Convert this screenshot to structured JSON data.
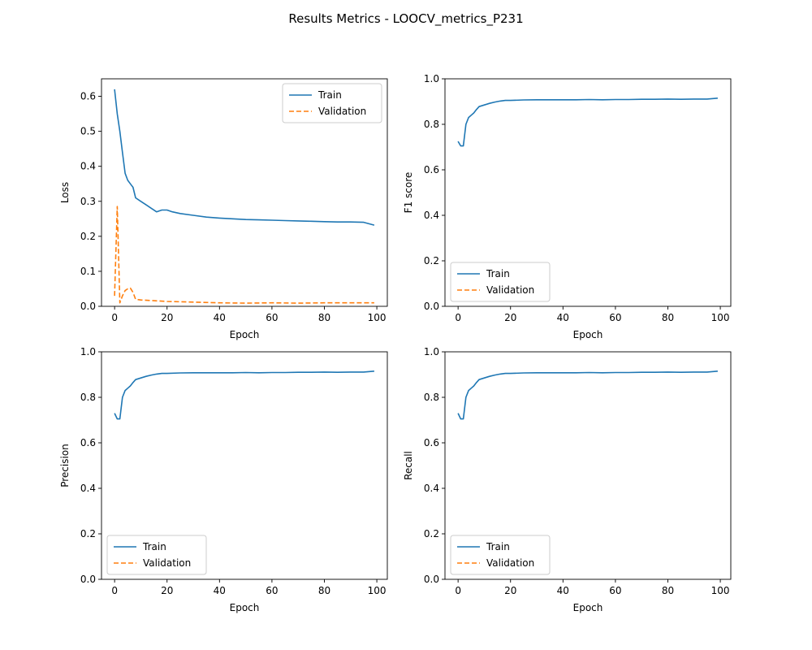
{
  "figure": {
    "title": "Results Metrics - LOOCV_metrics_P231"
  },
  "colors": {
    "train": "#1f77b4",
    "validation": "#ff7f0e"
  },
  "chart_data": [
    {
      "type": "line",
      "xlabel": "Epoch",
      "ylabel": "Loss",
      "xlim": [
        -5,
        104
      ],
      "ylim": [
        0,
        0.65
      ],
      "xticks": [
        0,
        20,
        40,
        60,
        80,
        100
      ],
      "yticks": [
        0.0,
        0.1,
        0.2,
        0.3,
        0.4,
        0.5,
        0.6
      ],
      "legend_position": "upper-right",
      "series": [
        {
          "name": "Train",
          "style": "solid",
          "x": [
            0,
            1,
            2,
            3,
            4,
            5,
            6,
            7,
            8,
            10,
            12,
            14,
            16,
            18,
            20,
            22,
            25,
            30,
            35,
            40,
            45,
            50,
            55,
            60,
            65,
            70,
            75,
            80,
            85,
            90,
            95,
            99
          ],
          "y": [
            0.62,
            0.55,
            0.5,
            0.44,
            0.38,
            0.36,
            0.35,
            0.34,
            0.31,
            0.3,
            0.29,
            0.28,
            0.27,
            0.275,
            0.275,
            0.27,
            0.265,
            0.26,
            0.255,
            0.252,
            0.25,
            0.248,
            0.247,
            0.246,
            0.245,
            0.244,
            0.243,
            0.242,
            0.241,
            0.241,
            0.24,
            0.232
          ]
        },
        {
          "name": "Validation",
          "style": "dashed",
          "x": [
            0,
            1,
            2,
            3,
            4,
            5,
            6,
            7,
            8,
            10,
            15,
            20,
            30,
            40,
            50,
            60,
            70,
            80,
            90,
            99
          ],
          "y": [
            0.03,
            0.285,
            0.01,
            0.03,
            0.045,
            0.05,
            0.052,
            0.04,
            0.02,
            0.018,
            0.016,
            0.014,
            0.012,
            0.01,
            0.009,
            0.01,
            0.009,
            0.01,
            0.01,
            0.01
          ]
        }
      ]
    },
    {
      "type": "line",
      "xlabel": "Epoch",
      "ylabel": "F1 score",
      "xlim": [
        -5,
        104
      ],
      "ylim": [
        0,
        1
      ],
      "xticks": [
        0,
        20,
        40,
        60,
        80,
        100
      ],
      "yticks": [
        0.0,
        0.2,
        0.4,
        0.6,
        0.8,
        1.0
      ],
      "legend_position": "lower-left",
      "series": [
        {
          "name": "Train",
          "style": "solid",
          "x": [
            0,
            1,
            2,
            3,
            4,
            5,
            6,
            7,
            8,
            10,
            12,
            14,
            16,
            18,
            20,
            25,
            30,
            35,
            40,
            45,
            50,
            55,
            60,
            65,
            70,
            75,
            80,
            85,
            90,
            95,
            99
          ],
          "y": [
            0.725,
            0.705,
            0.705,
            0.8,
            0.83,
            0.84,
            0.85,
            0.865,
            0.878,
            0.885,
            0.892,
            0.898,
            0.902,
            0.905,
            0.905,
            0.907,
            0.908,
            0.908,
            0.908,
            0.908,
            0.909,
            0.908,
            0.909,
            0.909,
            0.91,
            0.91,
            0.911,
            0.91,
            0.911,
            0.911,
            0.915
          ]
        },
        {
          "name": "Validation",
          "style": "dashed",
          "x": [],
          "y": []
        }
      ]
    },
    {
      "type": "line",
      "xlabel": "Epoch",
      "ylabel": "Precision",
      "xlim": [
        -5,
        104
      ],
      "ylim": [
        0,
        1
      ],
      "xticks": [
        0,
        20,
        40,
        60,
        80,
        100
      ],
      "yticks": [
        0.0,
        0.2,
        0.4,
        0.6,
        0.8,
        1.0
      ],
      "legend_position": "lower-left",
      "series": [
        {
          "name": "Train",
          "style": "solid",
          "x": [
            0,
            1,
            2,
            3,
            4,
            5,
            6,
            7,
            8,
            10,
            12,
            14,
            16,
            18,
            20,
            25,
            30,
            35,
            40,
            45,
            50,
            55,
            60,
            65,
            70,
            75,
            80,
            85,
            90,
            95,
            99
          ],
          "y": [
            0.73,
            0.705,
            0.705,
            0.8,
            0.83,
            0.84,
            0.85,
            0.865,
            0.878,
            0.885,
            0.892,
            0.898,
            0.902,
            0.905,
            0.905,
            0.907,
            0.908,
            0.908,
            0.908,
            0.908,
            0.909,
            0.908,
            0.909,
            0.909,
            0.91,
            0.91,
            0.911,
            0.91,
            0.911,
            0.911,
            0.915
          ]
        },
        {
          "name": "Validation",
          "style": "dashed",
          "x": [],
          "y": []
        }
      ]
    },
    {
      "type": "line",
      "xlabel": "Epoch",
      "ylabel": "Recall",
      "xlim": [
        -5,
        104
      ],
      "ylim": [
        0,
        1
      ],
      "xticks": [
        0,
        20,
        40,
        60,
        80,
        100
      ],
      "yticks": [
        0.0,
        0.2,
        0.4,
        0.6,
        0.8,
        1.0
      ],
      "legend_position": "lower-left",
      "series": [
        {
          "name": "Train",
          "style": "solid",
          "x": [
            0,
            1,
            2,
            3,
            4,
            5,
            6,
            7,
            8,
            10,
            12,
            14,
            16,
            18,
            20,
            25,
            30,
            35,
            40,
            45,
            50,
            55,
            60,
            65,
            70,
            75,
            80,
            85,
            90,
            95,
            99
          ],
          "y": [
            0.73,
            0.705,
            0.705,
            0.8,
            0.83,
            0.84,
            0.85,
            0.865,
            0.878,
            0.885,
            0.892,
            0.898,
            0.902,
            0.905,
            0.905,
            0.907,
            0.908,
            0.908,
            0.908,
            0.908,
            0.909,
            0.908,
            0.909,
            0.909,
            0.91,
            0.91,
            0.911,
            0.91,
            0.911,
            0.911,
            0.915
          ]
        },
        {
          "name": "Validation",
          "style": "dashed",
          "x": [],
          "y": []
        }
      ]
    }
  ]
}
